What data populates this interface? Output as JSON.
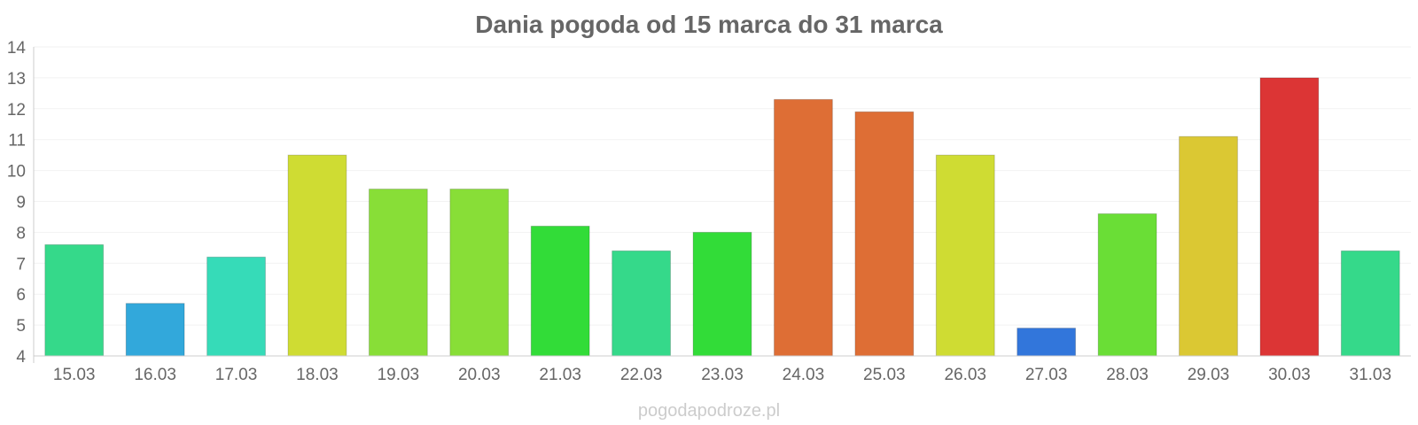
{
  "chart_data": {
    "type": "bar",
    "title": "Dania pogoda od 15 marca do 31 marca",
    "xlabel": "",
    "ylabel": "",
    "categories": [
      "15.03",
      "16.03",
      "17.03",
      "18.03",
      "19.03",
      "20.03",
      "21.03",
      "22.03",
      "23.03",
      "24.03",
      "25.03",
      "26.03",
      "27.03",
      "28.03",
      "29.03",
      "30.03",
      "31.03"
    ],
    "values": [
      7.6,
      5.7,
      7.2,
      10.5,
      9.4,
      9.4,
      8.2,
      7.4,
      8.0,
      12.3,
      11.9,
      10.5,
      4.9,
      8.6,
      11.1,
      13.0,
      7.4
    ],
    "colors": [
      "#35d98a",
      "#32a8db",
      "#36dbb8",
      "#cfdc33",
      "#88de37",
      "#88de37",
      "#32dc38",
      "#35d98a",
      "#32dc38",
      "#de6e35",
      "#de6e35",
      "#cfdc33",
      "#3276db",
      "#6ade36",
      "#dbc833",
      "#dc3535",
      "#35d98a"
    ],
    "ylim": [
      4,
      14
    ],
    "yticks": [
      "4",
      "5",
      "6",
      "7",
      "8",
      "9",
      "10",
      "11",
      "12",
      "13",
      "14"
    ],
    "grid": true,
    "legend": "none"
  },
  "watermark": "pogodapodroze.pl"
}
